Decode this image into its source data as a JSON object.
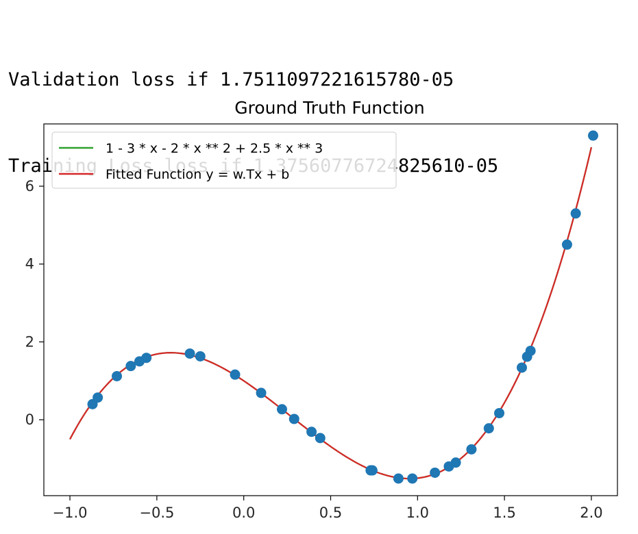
{
  "console": {
    "lines": [
      "Validation loss if 1.7511097221615780-05",
      "Training Loss loss if 1.37560776724825610-05"
    ]
  },
  "chart_data": {
    "type": "scatter",
    "title": "Ground Truth Function",
    "xlabel": "",
    "ylabel": "",
    "xlim": [
      -1.15,
      2.15
    ],
    "ylim": [
      -1.95,
      7.6
    ],
    "xticks": [
      -1.0,
      -0.5,
      0.0,
      0.5,
      1.0,
      1.5,
      2.0
    ],
    "xtick_labels": [
      "−1.0",
      "−0.5",
      "0.0",
      "0.5",
      "1.0",
      "1.5",
      "2.0"
    ],
    "yticks": [
      0,
      2,
      4,
      6
    ],
    "ytick_labels": [
      "0",
      "2",
      "4",
      "6"
    ],
    "grid": false,
    "legend_position": "upper-left",
    "series": [
      {
        "name": "1 - 3 * x - 2 * x ** 2 + 2.5 * x ** 3",
        "kind": "line",
        "color": "#2ca02c",
        "x_range": [
          -1.0,
          2.0
        ],
        "coefficients": [
          1,
          -3,
          -2,
          2.5
        ]
      },
      {
        "name": "Fitted Function y = w.Tx + b",
        "kind": "line",
        "color": "#d62728",
        "x_range": [
          -1.0,
          2.0
        ],
        "coefficients": [
          1,
          -3,
          -2,
          2.5
        ]
      },
      {
        "kind": "scatter",
        "color": "#1f77b4",
        "points": [
          [
            -0.87,
            0.4
          ],
          [
            -0.84,
            0.57
          ],
          [
            -0.73,
            1.12
          ],
          [
            -0.65,
            1.38
          ],
          [
            -0.6,
            1.5
          ],
          [
            -0.56,
            1.59
          ],
          [
            -0.31,
            1.7
          ],
          [
            -0.25,
            1.63
          ],
          [
            -0.05,
            1.16
          ],
          [
            0.1,
            0.69
          ],
          [
            0.22,
            0.27
          ],
          [
            0.29,
            0.02
          ],
          [
            0.39,
            -0.31
          ],
          [
            0.44,
            -0.47
          ],
          [
            0.73,
            -1.3
          ],
          [
            0.74,
            -1.3
          ],
          [
            0.89,
            -1.51
          ],
          [
            0.97,
            -1.51
          ],
          [
            1.1,
            -1.36
          ],
          [
            1.18,
            -1.2
          ],
          [
            1.22,
            -1.1
          ],
          [
            1.31,
            -0.76
          ],
          [
            1.41,
            -0.22
          ],
          [
            1.47,
            0.17
          ],
          [
            1.6,
            1.34
          ],
          [
            1.63,
            1.62
          ],
          [
            1.65,
            1.77
          ],
          [
            1.86,
            4.5
          ],
          [
            1.91,
            5.3
          ],
          [
            2.01,
            7.3
          ]
        ]
      }
    ]
  }
}
